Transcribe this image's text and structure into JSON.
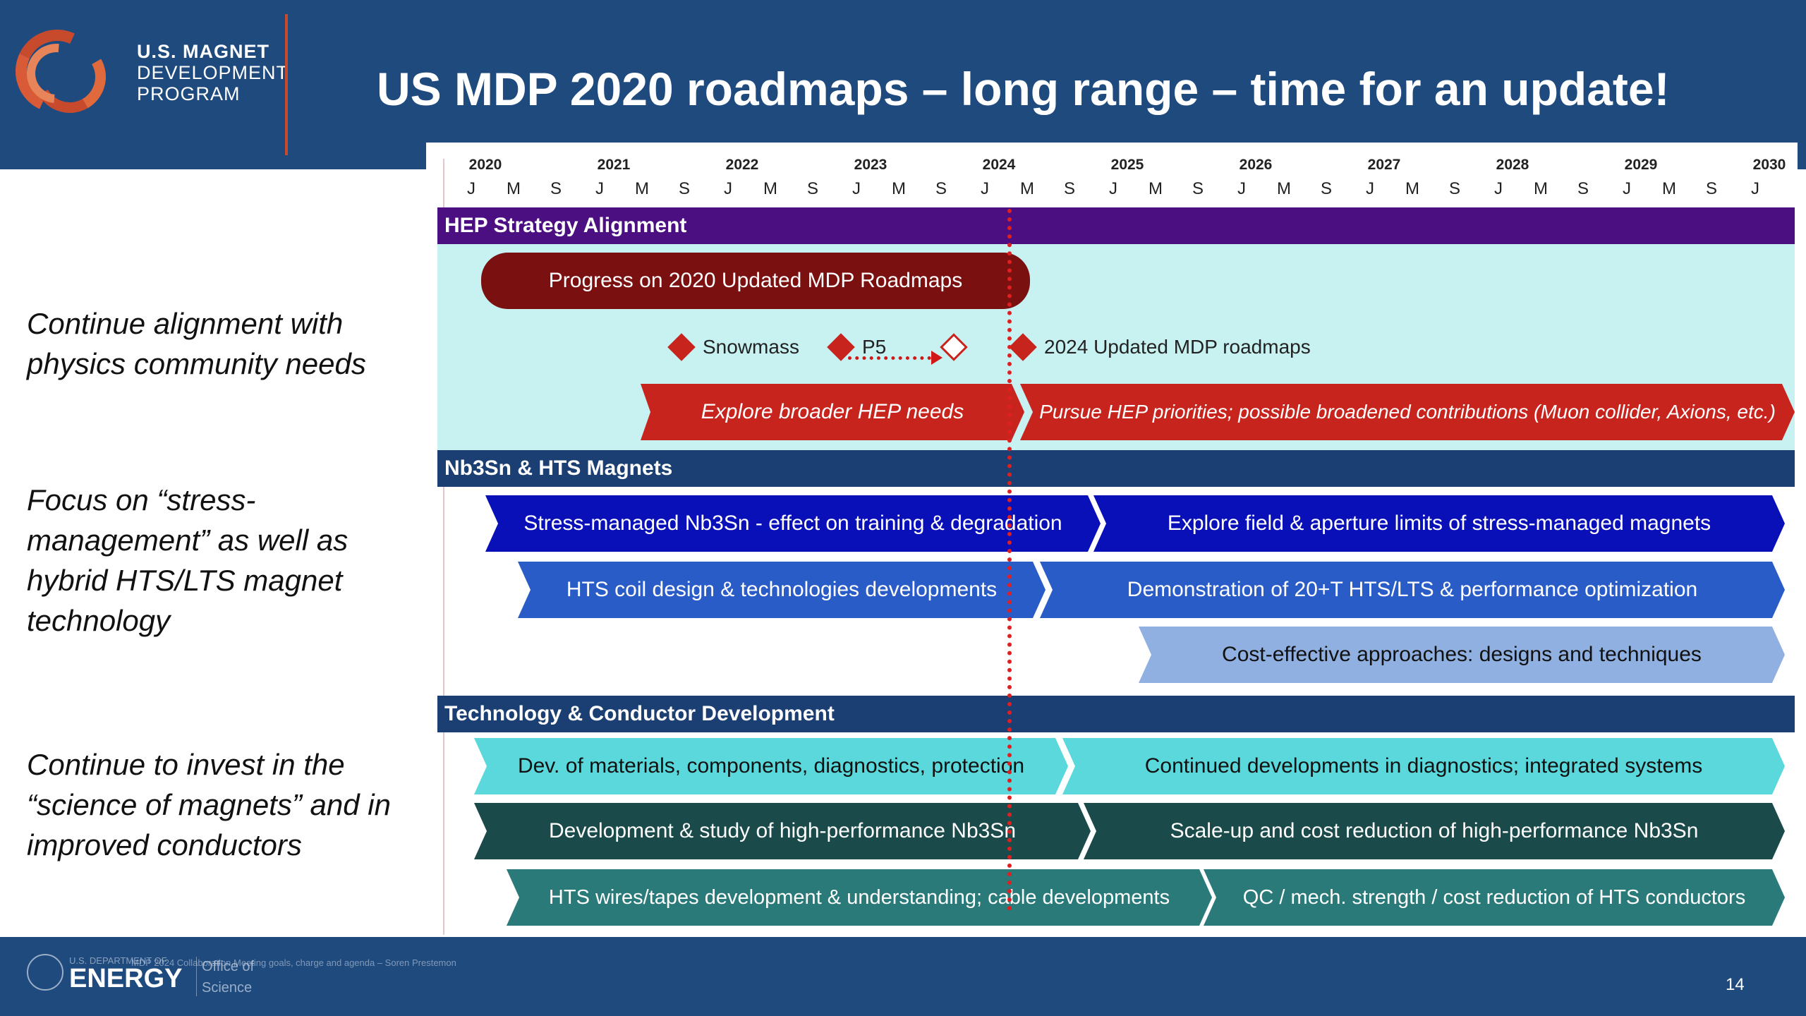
{
  "header": {
    "logo_lines": [
      "U.S. MAGNET",
      "DEVELOPMENT",
      "PROGRAM"
    ],
    "title": "US MDP 2020 roadmaps – long range – time for an update!"
  },
  "objectives": [
    "Continue alignment with physics community needs",
    "Focus on “stress-management” as well as hybrid HTS/LTS magnet technology",
    "Continue to invest in the “science of magnets” and in improved conductors"
  ],
  "timeline": {
    "years": [
      "2020",
      "2021",
      "2022",
      "2023",
      "2024",
      "2025",
      "2026",
      "2027",
      "2028",
      "2029",
      "2030"
    ],
    "month_ticks": [
      "J",
      "M",
      "S"
    ]
  },
  "sections": [
    {
      "label": "HEP Strategy Alignment",
      "color": "#4b0f82"
    },
    {
      "label": "Nb3Sn & HTS Magnets",
      "color": "#1b3f73"
    },
    {
      "label": "Technology & Conductor Development",
      "color": "#1b3f73"
    }
  ],
  "hep": {
    "progress_label": "Progress on 2020 Updated MDP Roadmaps",
    "milestones": [
      "Snowmass",
      "P5",
      "2024 Updated MDP roadmaps"
    ],
    "explore_label": "Explore broader HEP needs",
    "pursue_label": "Pursue HEP priorities; possible broadened contributions (Muon collider, Axions, etc.)"
  },
  "magnets": {
    "row1": [
      "Stress-managed Nb3Sn - effect on training & degradation",
      "Explore field & aperture limits of stress-managed magnets"
    ],
    "row2": [
      "HTS coil design & technologies developments",
      "Demonstration of 20+T HTS/LTS & performance optimization"
    ],
    "row3": "Cost-effective approaches: designs and techniques"
  },
  "tech": {
    "row1": [
      "Dev. of materials, components, diagnostics, protection",
      "Continued developments in diagnostics; integrated systems"
    ],
    "row2": [
      "Development & study of high-performance Nb3Sn",
      "Scale-up and cost reduction of high-performance Nb3Sn"
    ],
    "row3": [
      "HTS wires/tapes development & understanding;  cable developments",
      "QC / mech. strength / cost reduction of HTS conductors"
    ]
  },
  "colors": {
    "dark_red": "#7a1010",
    "red": "#c8241e",
    "royal_blue": "#0a10b8",
    "medium_blue": "#2a5cc8",
    "light_blue": "#8fb0e0",
    "cyan": "#5ad8dc",
    "dark_teal": "#1a4a4a",
    "teal": "#2a7a7a"
  },
  "footer": {
    "dept": "U.S. DEPARTMENT OF",
    "energy": "ENERGY",
    "office_lines": [
      "Office of",
      "Science"
    ],
    "meta": "MDP 2024 Collaboration Meeting goals, charge and agenda  –  Soren Prestemon",
    "page_number": "14"
  }
}
